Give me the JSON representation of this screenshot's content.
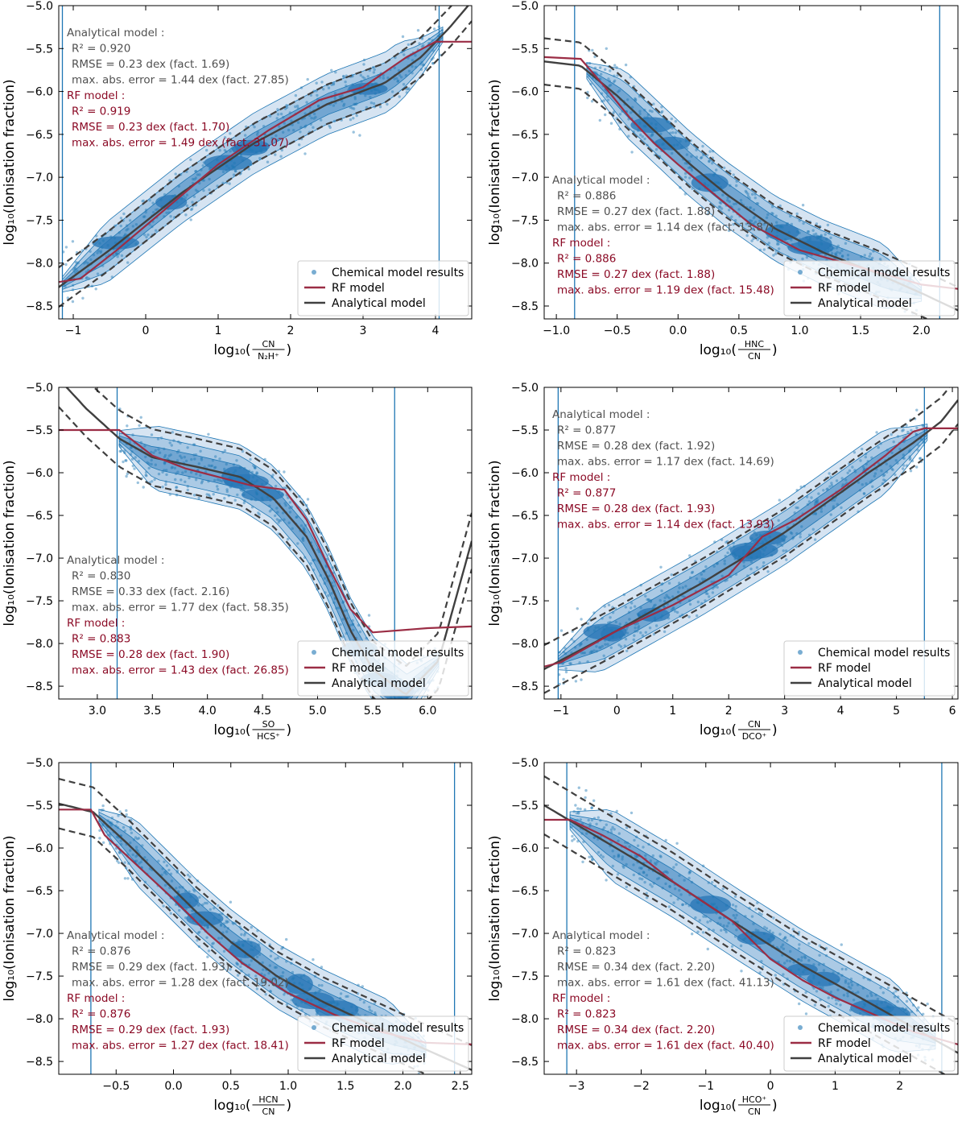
{
  "figure": {
    "ylabel": "log₁₀(Ionisation fraction)",
    "legend": [
      "Chemical model results",
      "RF model",
      "Analytical model"
    ],
    "colors": {
      "scatter": "#1f77b4",
      "rf": "#9b2d45",
      "analytical": "#404040",
      "rf_text": "#8b0a25",
      "ana_text": "#505050",
      "vline": "#1f77b4"
    }
  },
  "chart_data": [
    {
      "type": "scatter",
      "xlabel": "log₁₀(CN / N₂H⁺)",
      "xlabel_num": "CN",
      "xlabel_den": "N₂H⁺",
      "xlim": [
        -1.2,
        4.5
      ],
      "ylim": [
        -8.65,
        -5.0
      ],
      "xticks": [
        -1,
        0,
        1,
        2,
        3,
        4
      ],
      "yticks": [
        -8.5,
        -8.0,
        -7.5,
        -7.0,
        -6.5,
        -6.0,
        -5.5,
        -5.0
      ],
      "vlines": [
        -1.15,
        4.05
      ],
      "analytical_curve": {
        "x": [
          -1.2,
          -0.5,
          0.5,
          1.5,
          2.5,
          3.3,
          3.8,
          4.2,
          4.5
        ],
        "y": [
          -8.28,
          -7.85,
          -7.18,
          -6.6,
          -6.15,
          -5.9,
          -5.6,
          -5.25,
          -4.95
        ]
      },
      "analytical_band": {
        "offset": 0.23
      },
      "rf_curve": {
        "x": [
          -1.2,
          -0.9,
          -0.4,
          0.3,
          1.0,
          1.7,
          2.4,
          3.0,
          3.6,
          4.0,
          4.5
        ],
        "y": [
          -8.22,
          -8.18,
          -7.85,
          -7.35,
          -6.85,
          -6.45,
          -6.1,
          -5.95,
          -5.6,
          -5.42,
          -5.42
        ]
      },
      "scatter_cloud": {
        "x0": -1.15,
        "x1": 4.1,
        "spread": 0.28
      },
      "stats": {
        "analytical": {
          "title": "Analytical model :",
          "r2": "R² = 0.920",
          "rmse": "RMSE = 0.23 dex (fact. 1.69)",
          "maxerr": "max. abs. error = 1.44 dex (fact. 27.85)"
        },
        "rf": {
          "title": "RF model :",
          "r2": "R² = 0.919",
          "rmse": "RMSE = 0.23 dex (fact. 1.70)",
          "maxerr": "max. abs. error = 1.49 dex (fact. 31.07)"
        }
      },
      "stats_position": "top-left",
      "legend_position": "bottom-right"
    },
    {
      "type": "scatter",
      "xlabel": "log₁₀(HNC / CN)",
      "xlabel_num": "HNC",
      "xlabel_den": "CN",
      "xlim": [
        -1.1,
        2.3
      ],
      "ylim": [
        -8.65,
        -5.0
      ],
      "xticks": [
        -1.0,
        -0.5,
        0.0,
        0.5,
        1.0,
        1.5,
        2.0
      ],
      "yticks": [
        -8.5,
        -8.0,
        -7.5,
        -7.0,
        -6.5,
        -6.0,
        -5.5,
        -5.0
      ],
      "vlines": [
        -0.85,
        2.15
      ],
      "analytical_curve": {
        "x": [
          -1.1,
          -0.8,
          -0.5,
          -0.2,
          0.1,
          0.4,
          0.8,
          1.2,
          1.6,
          2.0,
          2.3
        ],
        "y": [
          -5.65,
          -5.7,
          -6.05,
          -6.45,
          -6.85,
          -7.2,
          -7.6,
          -7.88,
          -8.1,
          -8.35,
          -8.55
        ]
      },
      "analytical_band": {
        "offset": 0.27
      },
      "rf_curve": {
        "x": [
          -1.1,
          -0.8,
          -0.6,
          -0.4,
          -0.2,
          0.0,
          0.3,
          0.6,
          1.0,
          1.5,
          2.0,
          2.3
        ],
        "y": [
          -5.6,
          -5.62,
          -5.95,
          -6.3,
          -6.6,
          -6.85,
          -7.2,
          -7.55,
          -7.85,
          -8.05,
          -8.25,
          -8.3
        ]
      },
      "scatter_cloud": {
        "x0": -0.75,
        "x1": 2.0,
        "spread": 0.3
      },
      "stats": {
        "analytical": {
          "title": "Analytical model :",
          "r2": "R² = 0.886",
          "rmse": "RMSE = 0.27 dex (fact. 1.88)",
          "maxerr": "max. abs. error = 1.14 dex (fact. 13.87)"
        },
        "rf": {
          "title": "RF model :",
          "r2": "R² = 0.886",
          "rmse": "RMSE = 0.27 dex (fact. 1.88)",
          "maxerr": "max. abs. error = 1.19 dex (fact. 15.48)"
        }
      },
      "stats_position": "bottom-left",
      "legend_position": "bottom-right"
    },
    {
      "type": "scatter",
      "xlabel": "log₁₀(SO / HCS⁺)",
      "xlabel_num": "SO",
      "xlabel_den": "HCS⁺",
      "xlim": [
        2.65,
        6.4
      ],
      "ylim": [
        -8.65,
        -5.0
      ],
      "xticks": [
        3.0,
        3.5,
        4.0,
        4.5,
        5.0,
        5.5,
        6.0
      ],
      "yticks": [
        -8.5,
        -8.0,
        -7.5,
        -7.0,
        -6.5,
        -6.0,
        -5.5,
        -5.0
      ],
      "vlines": [
        3.18,
        5.7
      ],
      "analytical_curve": {
        "x": [
          2.65,
          2.9,
          3.2,
          3.5,
          3.9,
          4.3,
          4.6,
          4.9,
          5.1,
          5.3,
          5.5,
          5.8,
          6.1,
          6.4
        ],
        "y": [
          -4.9,
          -5.25,
          -5.6,
          -5.82,
          -5.93,
          -6.05,
          -6.3,
          -6.75,
          -7.25,
          -7.85,
          -8.3,
          -8.6,
          -8.2,
          -6.8
        ]
      },
      "analytical_band": {
        "offset": 0.33
      },
      "rf_curve": {
        "x": [
          2.65,
          3.2,
          3.5,
          3.8,
          4.1,
          4.4,
          4.7,
          4.9,
          5.1,
          5.3,
          5.5,
          6.0,
          6.4
        ],
        "y": [
          -5.5,
          -5.5,
          -5.8,
          -5.95,
          -6.05,
          -6.15,
          -6.2,
          -6.55,
          -7.1,
          -7.6,
          -7.87,
          -7.82,
          -7.8
        ]
      },
      "scatter_cloud": {
        "x0": 3.2,
        "x1": 6.1,
        "spread": 0.3
      },
      "stats": {
        "analytical": {
          "title": "Analytical model :",
          "r2": "R² = 0.830",
          "rmse": "RMSE = 0.33 dex (fact. 2.16)",
          "maxerr": "max. abs. error = 1.77 dex (fact. 58.35)"
        },
        "rf": {
          "title": "RF model :",
          "r2": "R² = 0.883",
          "rmse": "RMSE = 0.28 dex (fact. 1.90)",
          "maxerr": "max. abs. error = 1.43 dex (fact. 26.85)"
        }
      },
      "stats_position": "bottom-left",
      "legend_position": "bottom-right"
    },
    {
      "type": "scatter",
      "xlabel": "log₁₀(CN / DCO⁺)",
      "xlabel_num": "CN",
      "xlabel_den": "DCO⁺",
      "xlim": [
        -1.3,
        6.1
      ],
      "ylim": [
        -8.65,
        -5.0
      ],
      "xticks": [
        -1,
        0,
        1,
        2,
        3,
        4,
        5,
        6
      ],
      "yticks": [
        -8.5,
        -8.0,
        -7.5,
        -7.0,
        -6.5,
        -6.0,
        -5.5,
        -5.0
      ],
      "vlines": [
        -1.05,
        5.5
      ],
      "analytical_curve": {
        "x": [
          -1.3,
          0.0,
          1.5,
          3.0,
          4.5,
          5.3,
          5.8,
          6.1
        ],
        "y": [
          -8.3,
          -7.85,
          -7.3,
          -6.7,
          -6.0,
          -5.65,
          -5.4,
          -5.15
        ]
      },
      "analytical_band": {
        "offset": 0.28
      },
      "rf_curve": {
        "x": [
          -1.3,
          -1.0,
          0.0,
          1.0,
          2.0,
          2.6,
          3.2,
          4.0,
          4.8,
          5.3,
          5.5,
          6.1
        ],
        "y": [
          -8.27,
          -8.22,
          -7.85,
          -7.55,
          -7.2,
          -6.75,
          -6.55,
          -6.2,
          -5.8,
          -5.52,
          -5.48,
          -5.48
        ]
      },
      "scatter_cloud": {
        "x0": -1.05,
        "x1": 5.55,
        "spread": 0.3
      },
      "stats": {
        "analytical": {
          "title": "Analytical model :",
          "r2": "R² = 0.877",
          "rmse": "RMSE = 0.28 dex (fact. 1.92)",
          "maxerr": "max. abs. error = 1.17 dex (fact. 14.69)"
        },
        "rf": {
          "title": "RF model :",
          "r2": "R² = 0.877",
          "rmse": "RMSE = 0.28 dex (fact. 1.93)",
          "maxerr": "max. abs. error = 1.14 dex (fact. 13.93)"
        }
      },
      "stats_position": "top-left",
      "legend_position": "bottom-right"
    },
    {
      "type": "scatter",
      "xlabel": "log₁₀(HCN / CN)",
      "xlabel_num": "HCN",
      "xlabel_den": "CN",
      "xlim": [
        -1.0,
        2.6
      ],
      "ylim": [
        -8.65,
        -5.0
      ],
      "xticks": [
        -0.5,
        0.0,
        0.5,
        1.0,
        1.5,
        2.0,
        2.5
      ],
      "yticks": [
        -8.5,
        -8.0,
        -7.5,
        -7.0,
        -6.5,
        -6.0,
        -5.5,
        -5.0
      ],
      "vlines": [
        -0.72,
        2.45
      ],
      "analytical_curve": {
        "x": [
          -1.0,
          -0.7,
          -0.4,
          -0.1,
          0.2,
          0.5,
          0.9,
          1.3,
          1.7,
          2.1,
          2.6
        ],
        "y": [
          -5.48,
          -5.58,
          -5.95,
          -6.35,
          -6.75,
          -7.1,
          -7.5,
          -7.8,
          -8.05,
          -8.3,
          -8.6
        ]
      },
      "analytical_band": {
        "offset": 0.29
      },
      "rf_curve": {
        "x": [
          -1.0,
          -0.72,
          -0.6,
          -0.4,
          -0.2,
          0.0,
          0.3,
          0.6,
          1.0,
          1.4,
          1.8,
          2.2,
          2.6
        ],
        "y": [
          -5.55,
          -5.55,
          -5.85,
          -6.1,
          -6.35,
          -6.6,
          -7.0,
          -7.35,
          -7.7,
          -7.95,
          -8.15,
          -8.28,
          -8.3
        ]
      },
      "scatter_cloud": {
        "x0": -0.65,
        "x1": 2.2,
        "spread": 0.3
      },
      "stats": {
        "analytical": {
          "title": "Analytical model :",
          "r2": "R² = 0.876",
          "rmse": "RMSE = 0.29 dex (fact. 1.93)",
          "maxerr": "max. abs. error = 1.28 dex (fact. 19.02)"
        },
        "rf": {
          "title": "RF model :",
          "r2": "R² = 0.876",
          "rmse": "RMSE = 0.29 dex (fact. 1.93)",
          "maxerr": "max. abs. error = 1.27 dex (fact. 18.41)"
        }
      },
      "stats_position": "bottom-left",
      "legend_position": "bottom-right"
    },
    {
      "type": "scatter",
      "xlabel": "log₁₀(HCO⁺ / CN)",
      "xlabel_num": "HCO⁺",
      "xlabel_den": "CN",
      "xlim": [
        -3.5,
        2.9
      ],
      "ylim": [
        -8.65,
        -5.0
      ],
      "xticks": [
        -3,
        -2,
        -1,
        0,
        1,
        2
      ],
      "yticks": [
        -8.5,
        -8.0,
        -7.5,
        -7.0,
        -6.5,
        -6.0,
        -5.5,
        -5.0
      ],
      "vlines": [
        -3.15,
        2.65
      ],
      "analytical_curve": {
        "x": [
          -3.5,
          -2.5,
          -1.5,
          -0.5,
          0.5,
          1.5,
          2.9
        ],
        "y": [
          -5.5,
          -5.95,
          -6.4,
          -6.9,
          -7.38,
          -7.8,
          -8.4
        ]
      },
      "analytical_band": {
        "offset": 0.34
      },
      "rf_curve": {
        "x": [
          -3.5,
          -3.1,
          -2.6,
          -2.0,
          -1.5,
          -1.1,
          -0.6,
          0.0,
          0.5,
          1.0,
          1.6,
          2.2,
          2.9
        ],
        "y": [
          -5.67,
          -5.67,
          -5.85,
          -6.1,
          -6.4,
          -6.6,
          -6.85,
          -7.3,
          -7.55,
          -7.75,
          -7.95,
          -8.15,
          -8.3
        ]
      },
      "scatter_cloud": {
        "x0": -3.1,
        "x1": 2.55,
        "spread": 0.33
      },
      "stats": {
        "analytical": {
          "title": "Analytical model :",
          "r2": "R² = 0.823",
          "rmse": "RMSE = 0.34 dex (fact. 2.20)",
          "maxerr": "max. abs. error = 1.61 dex (fact. 41.13)"
        },
        "rf": {
          "title": "RF model :",
          "r2": "R² = 0.823",
          "rmse": "RMSE = 0.34 dex (fact. 2.20)",
          "maxerr": "max. abs. error = 1.61 dex (fact. 40.40)"
        }
      },
      "stats_position": "bottom-left",
      "legend_position": "bottom-right"
    }
  ]
}
